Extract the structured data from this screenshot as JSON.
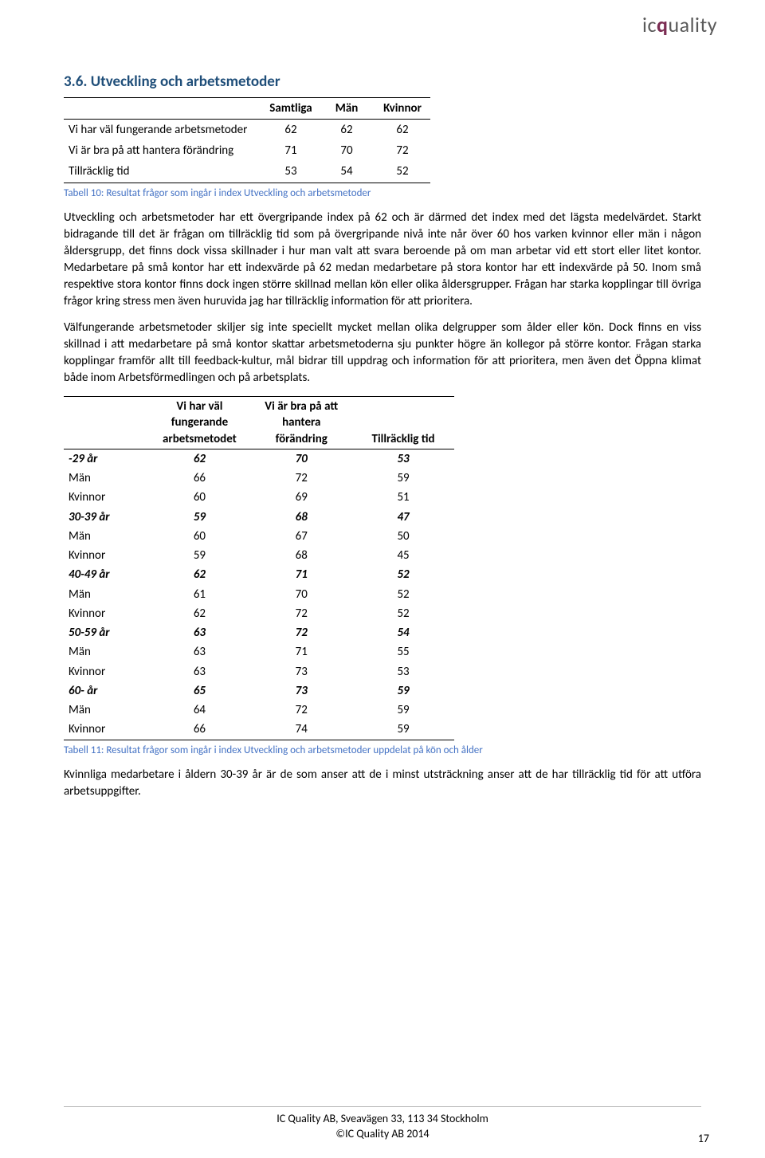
{
  "logo": {
    "ic": "ic",
    "q": "q",
    "rest": "uality"
  },
  "section_title": "3.6. Utveckling och arbetsmetoder",
  "table1": {
    "headers": [
      "",
      "Samtliga",
      "Män",
      "Kvinnor"
    ],
    "rows": [
      {
        "label": "Vi har väl fungerande arbetsmetoder",
        "v": [
          "62",
          "62",
          "62"
        ]
      },
      {
        "label": "Vi är bra på att hantera förändring",
        "v": [
          "71",
          "70",
          "72"
        ]
      },
      {
        "label": "Tillräcklig tid",
        "v": [
          "53",
          "54",
          "52"
        ]
      }
    ],
    "caption": "Tabell 10: Resultat frågor som ingår i index Utveckling och arbetsmetoder"
  },
  "para1": "Utveckling och arbetsmetoder har ett övergripande index på 62 och är därmed det index med det lägsta medelvärdet. Starkt bidragande till det är frågan om tillräcklig tid som på övergripande nivå inte når över 60 hos varken kvinnor eller män i någon åldersgrupp, det finns dock vissa skillnader i hur man valt att svara beroende på om man arbetar vid ett stort eller litet kontor. Medarbetare på små kontor har ett indexvärde på 62 medan medarbetare på stora kontor har ett indexvärde på 50. Inom små respektive stora kontor finns dock ingen större skillnad mellan kön eller olika åldersgrupper. Frågan har starka kopplingar till övriga frågor kring stress men även huruvida jag har tillräcklig information för att prioritera.",
  "para2": "Välfungerande arbetsmetoder skiljer sig inte speciellt mycket mellan olika delgrupper som ålder eller kön. Dock finns en viss skillnad i att medarbetare på små kontor skattar arbetsmetoderna sju punkter högre än kollegor på större kontor. Frågan starka kopplingar framför allt till feedback-kultur, mål bidrar till uppdrag och information för att prioritera, men även det Öppna klimat både inom Arbetsförmedlingen och på arbetsplats.",
  "table2": {
    "headers": [
      "",
      "Vi har väl fungerande arbetsmetodet",
      "Vi är bra på att hantera förändring",
      "Tillräcklig tid"
    ],
    "rows": [
      {
        "label": "-29 år",
        "bold": true,
        "v": [
          "62",
          "70",
          "53"
        ]
      },
      {
        "label": "Män",
        "bold": false,
        "v": [
          "66",
          "72",
          "59"
        ]
      },
      {
        "label": "Kvinnor",
        "bold": false,
        "v": [
          "60",
          "69",
          "51"
        ]
      },
      {
        "label": "30-39 år",
        "bold": true,
        "v": [
          "59",
          "68",
          "47"
        ]
      },
      {
        "label": "Män",
        "bold": false,
        "v": [
          "60",
          "67",
          "50"
        ]
      },
      {
        "label": "Kvinnor",
        "bold": false,
        "v": [
          "59",
          "68",
          "45"
        ]
      },
      {
        "label": "40-49 år",
        "bold": true,
        "v": [
          "62",
          "71",
          "52"
        ]
      },
      {
        "label": "Män",
        "bold": false,
        "v": [
          "61",
          "70",
          "52"
        ]
      },
      {
        "label": "Kvinnor",
        "bold": false,
        "v": [
          "62",
          "72",
          "52"
        ]
      },
      {
        "label": "50-59 år",
        "bold": true,
        "v": [
          "63",
          "72",
          "54"
        ]
      },
      {
        "label": "Män",
        "bold": false,
        "v": [
          "63",
          "71",
          "55"
        ]
      },
      {
        "label": "Kvinnor",
        "bold": false,
        "v": [
          "63",
          "73",
          "53"
        ]
      },
      {
        "label": "60- år",
        "bold": true,
        "v": [
          "65",
          "73",
          "59"
        ]
      },
      {
        "label": "Män",
        "bold": false,
        "v": [
          "64",
          "72",
          "59"
        ]
      },
      {
        "label": "Kvinnor",
        "bold": false,
        "v": [
          "66",
          "74",
          "59"
        ]
      }
    ],
    "caption": "Tabell 11: Resultat frågor som ingår i index Utveckling och arbetsmetoder uppdelat på kön och ålder"
  },
  "para3": "Kvinnliga medarbetare i åldern 30-39 år är de som anser att de i minst utsträckning anser att de har tillräcklig tid för att utföra arbetsuppgifter.",
  "footer": {
    "line1": "IC Quality AB, Sveavägen 33, 113 34 Stockholm",
    "line2": "©IC Quality AB 2014",
    "pagenum": "17"
  }
}
